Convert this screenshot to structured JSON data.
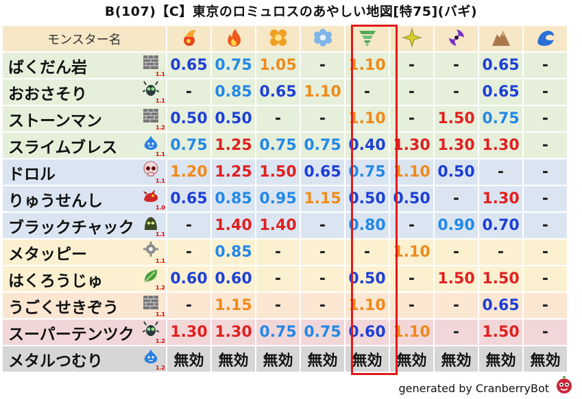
{
  "title": "B(107)【C】東京のロミュロスのあやしい地図[特75](バギ)",
  "header": {
    "name_label": "モンスター名",
    "elements": [
      {
        "icon": "fire-ball-icon",
        "color": "#e8421f"
      },
      {
        "icon": "flame-icon",
        "color": "#ef5a1c"
      },
      {
        "icon": "explosion-icon",
        "color": "#f0a020"
      },
      {
        "icon": "ice-flower-icon",
        "color": "#7fb6ea"
      },
      {
        "icon": "tornado-icon",
        "color": "#4faa5a"
      },
      {
        "icon": "lightning-icon",
        "color": "#d9cf2a"
      },
      {
        "icon": "darkness-swirl-icon",
        "color": "#7a2ec8"
      },
      {
        "icon": "rock-icon",
        "color": "#a9784a"
      },
      {
        "icon": "water-wave-icon",
        "color": "#2a6fd8"
      }
    ]
  },
  "rows": [
    {
      "name": "ばくだん岩",
      "icon": "brick-wall-icon",
      "ver": "1.1",
      "bg": "green",
      "cells": [
        {
          "v": "0.65",
          "c": "good"
        },
        {
          "v": "0.75",
          "c": "mid"
        },
        {
          "v": "1.05",
          "c": "warm"
        },
        {
          "v": "-",
          "c": "none"
        },
        {
          "v": "1.10",
          "c": "warm"
        },
        {
          "v": "-",
          "c": "none"
        },
        {
          "v": "-",
          "c": "none"
        },
        {
          "v": "0.65",
          "c": "good"
        },
        {
          "v": "-",
          "c": "none"
        }
      ]
    },
    {
      "name": "おおさそり",
      "icon": "insect-icon",
      "ver": "1.1",
      "bg": "green",
      "cells": [
        {
          "v": "-",
          "c": "none"
        },
        {
          "v": "0.85",
          "c": "mid"
        },
        {
          "v": "0.65",
          "c": "good"
        },
        {
          "v": "1.10",
          "c": "warm"
        },
        {
          "v": "-",
          "c": "none"
        },
        {
          "v": "-",
          "c": "none"
        },
        {
          "v": "-",
          "c": "none"
        },
        {
          "v": "0.65",
          "c": "good"
        },
        {
          "v": "-",
          "c": "none"
        }
      ]
    },
    {
      "name": "ストーンマン",
      "icon": "brick-wall-icon",
      "ver": "1.2",
      "bg": "green",
      "cells": [
        {
          "v": "0.50",
          "c": "good"
        },
        {
          "v": "0.50",
          "c": "good"
        },
        {
          "v": "-",
          "c": "none"
        },
        {
          "v": "-",
          "c": "none"
        },
        {
          "v": "1.10",
          "c": "warm"
        },
        {
          "v": "-",
          "c": "none"
        },
        {
          "v": "1.50",
          "c": "bad"
        },
        {
          "v": "0.75",
          "c": "mid"
        },
        {
          "v": "-",
          "c": "none"
        }
      ]
    },
    {
      "name": "スライムブレス",
      "icon": "slime-icon",
      "ver": "1.1",
      "bg": "green",
      "cells": [
        {
          "v": "0.75",
          "c": "mid"
        },
        {
          "v": "1.25",
          "c": "bad"
        },
        {
          "v": "0.75",
          "c": "mid"
        },
        {
          "v": "0.75",
          "c": "mid"
        },
        {
          "v": "0.40",
          "c": "good"
        },
        {
          "v": "1.30",
          "c": "bad"
        },
        {
          "v": "1.30",
          "c": "bad"
        },
        {
          "v": "1.30",
          "c": "bad"
        },
        {
          "v": "-",
          "c": "none"
        }
      ]
    },
    {
      "name": "ドロル",
      "icon": "skull-icon",
      "ver": "1.1",
      "bg": "blue",
      "cells": [
        {
          "v": "1.20",
          "c": "warm"
        },
        {
          "v": "1.25",
          "c": "bad"
        },
        {
          "v": "1.50",
          "c": "bad"
        },
        {
          "v": "0.65",
          "c": "good"
        },
        {
          "v": "0.75",
          "c": "mid"
        },
        {
          "v": "1.10",
          "c": "warm"
        },
        {
          "v": "0.50",
          "c": "good"
        },
        {
          "v": "-",
          "c": "none"
        },
        {
          "v": "-",
          "c": "none"
        }
      ]
    },
    {
      "name": "りゅうせんし",
      "icon": "dragon-icon",
      "ver": "1.0",
      "bg": "blue",
      "cells": [
        {
          "v": "0.65",
          "c": "good"
        },
        {
          "v": "0.85",
          "c": "mid"
        },
        {
          "v": "0.95",
          "c": "mid"
        },
        {
          "v": "1.15",
          "c": "warm"
        },
        {
          "v": "0.50",
          "c": "good"
        },
        {
          "v": "0.50",
          "c": "good"
        },
        {
          "v": "-",
          "c": "none"
        },
        {
          "v": "1.30",
          "c": "bad"
        },
        {
          "v": "-",
          "c": "none"
        }
      ]
    },
    {
      "name": "ブラックチャック",
      "icon": "zombie-icon",
      "ver": "1.1",
      "bg": "blue",
      "cells": [
        {
          "v": "-",
          "c": "none"
        },
        {
          "v": "1.40",
          "c": "bad"
        },
        {
          "v": "1.40",
          "c": "bad"
        },
        {
          "v": "-",
          "c": "none"
        },
        {
          "v": "0.80",
          "c": "mid"
        },
        {
          "v": "-",
          "c": "none"
        },
        {
          "v": "0.90",
          "c": "mid"
        },
        {
          "v": "0.70",
          "c": "good"
        },
        {
          "v": "-",
          "c": "none"
        }
      ]
    },
    {
      "name": "メタッピー",
      "icon": "gear-icon",
      "ver": "1.1",
      "bg": "yellow",
      "cells": [
        {
          "v": "-",
          "c": "none"
        },
        {
          "v": "0.85",
          "c": "mid"
        },
        {
          "v": "-",
          "c": "none"
        },
        {
          "v": "-",
          "c": "none"
        },
        {
          "v": "-",
          "c": "none"
        },
        {
          "v": "1.10",
          "c": "warm"
        },
        {
          "v": "-",
          "c": "none"
        },
        {
          "v": "-",
          "c": "none"
        },
        {
          "v": "-",
          "c": "none"
        }
      ]
    },
    {
      "name": "はくろうじゅ",
      "icon": "leaf-icon",
      "ver": "1.2",
      "bg": "yellow",
      "cells": [
        {
          "v": "0.60",
          "c": "good"
        },
        {
          "v": "0.60",
          "c": "good"
        },
        {
          "v": "-",
          "c": "none"
        },
        {
          "v": "-",
          "c": "none"
        },
        {
          "v": "0.50",
          "c": "good"
        },
        {
          "v": "-",
          "c": "none"
        },
        {
          "v": "1.50",
          "c": "bad"
        },
        {
          "v": "1.50",
          "c": "bad"
        },
        {
          "v": "-",
          "c": "none"
        }
      ]
    },
    {
      "name": "うごくせきぞう",
      "icon": "brick-wall-icon",
      "ver": "1.1",
      "bg": "orange",
      "cells": [
        {
          "v": "-",
          "c": "none"
        },
        {
          "v": "1.15",
          "c": "warm"
        },
        {
          "v": "-",
          "c": "none"
        },
        {
          "v": "-",
          "c": "none"
        },
        {
          "v": "1.10",
          "c": "warm"
        },
        {
          "v": "-",
          "c": "none"
        },
        {
          "v": "-",
          "c": "none"
        },
        {
          "v": "0.65",
          "c": "good"
        },
        {
          "v": "-",
          "c": "none"
        }
      ]
    },
    {
      "name": "スーパーテンツク",
      "icon": "insect-icon",
      "ver": "1.2",
      "bg": "pink",
      "cells": [
        {
          "v": "1.30",
          "c": "bad"
        },
        {
          "v": "1.30",
          "c": "bad"
        },
        {
          "v": "0.75",
          "c": "mid"
        },
        {
          "v": "0.75",
          "c": "mid"
        },
        {
          "v": "0.60",
          "c": "good"
        },
        {
          "v": "1.10",
          "c": "warm"
        },
        {
          "v": "-",
          "c": "none"
        },
        {
          "v": "1.50",
          "c": "bad"
        },
        {
          "v": "-",
          "c": "none"
        }
      ]
    },
    {
      "name": "メタルつむり",
      "icon": "slime-icon",
      "ver": "1.2",
      "bg": "gray",
      "cells": [
        {
          "v": "無効",
          "c": "imm"
        },
        {
          "v": "無効",
          "c": "imm"
        },
        {
          "v": "無効",
          "c": "imm"
        },
        {
          "v": "無効",
          "c": "imm"
        },
        {
          "v": "無効",
          "c": "imm"
        },
        {
          "v": "無効",
          "c": "imm"
        },
        {
          "v": "無効",
          "c": "imm"
        },
        {
          "v": "無効",
          "c": "imm"
        },
        {
          "v": "無効",
          "c": "imm"
        }
      ]
    }
  ],
  "footer": "generated by CranberryBot",
  "footer_icon": "cranberry-bot-icon"
}
